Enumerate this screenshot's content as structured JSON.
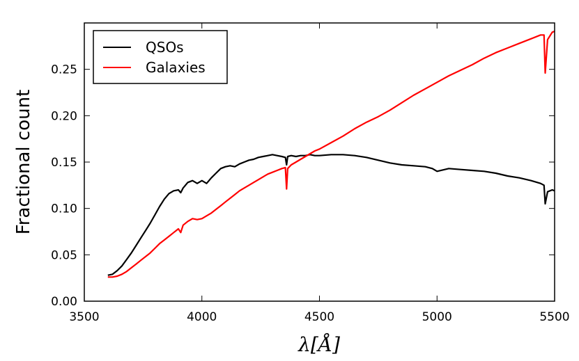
{
  "chart_data": {
    "type": "line",
    "title": "",
    "xlabel": "λ[Å]",
    "ylabel": "Fractional count",
    "xlim": [
      3500,
      5500
    ],
    "ylim": [
      0.0,
      0.3
    ],
    "xticks": [
      3500,
      4000,
      4500,
      5000,
      5500
    ],
    "xtick_labels": [
      "3500",
      "4000",
      "4500",
      "5000",
      "5500"
    ],
    "yticks": [
      0.0,
      0.05,
      0.1,
      0.15,
      0.2,
      0.25
    ],
    "ytick_labels": [
      "0.00",
      "0.05",
      "0.10",
      "0.15",
      "0.20",
      "0.25"
    ],
    "grid": false,
    "legend_position": "top-left",
    "series": [
      {
        "name": "QSOs",
        "color": "#000000",
        "x": [
          3600,
          3620,
          3640,
          3660,
          3680,
          3700,
          3720,
          3740,
          3760,
          3780,
          3800,
          3820,
          3840,
          3860,
          3880,
          3900,
          3910,
          3920,
          3940,
          3960,
          3980,
          4000,
          4020,
          4040,
          4060,
          4080,
          4100,
          4120,
          4140,
          4160,
          4180,
          4200,
          4220,
          4240,
          4260,
          4280,
          4300,
          4320,
          4340,
          4355,
          4360,
          4365,
          4380,
          4400,
          4420,
          4440,
          4460,
          4480,
          4500,
          4550,
          4600,
          4650,
          4700,
          4750,
          4800,
          4850,
          4900,
          4950,
          4980,
          5000,
          5050,
          5100,
          5150,
          5200,
          5250,
          5300,
          5350,
          5400,
          5440,
          5455,
          5460,
          5470,
          5490,
          5500
        ],
        "values": [
          0.028,
          0.029,
          0.033,
          0.038,
          0.045,
          0.052,
          0.06,
          0.068,
          0.076,
          0.084,
          0.093,
          0.102,
          0.11,
          0.116,
          0.119,
          0.12,
          0.117,
          0.122,
          0.128,
          0.13,
          0.127,
          0.13,
          0.127,
          0.133,
          0.138,
          0.143,
          0.145,
          0.146,
          0.145,
          0.148,
          0.15,
          0.152,
          0.153,
          0.155,
          0.156,
          0.157,
          0.158,
          0.157,
          0.156,
          0.155,
          0.147,
          0.156,
          0.157,
          0.156,
          0.157,
          0.157,
          0.158,
          0.157,
          0.157,
          0.158,
          0.158,
          0.157,
          0.155,
          0.152,
          0.149,
          0.147,
          0.146,
          0.145,
          0.143,
          0.14,
          0.143,
          0.142,
          0.141,
          0.14,
          0.138,
          0.135,
          0.133,
          0.13,
          0.127,
          0.125,
          0.105,
          0.118,
          0.12,
          0.119
        ]
      },
      {
        "name": "Galaxies",
        "color": "#ff0000",
        "x": [
          3600,
          3620,
          3640,
          3660,
          3680,
          3700,
          3720,
          3740,
          3760,
          3780,
          3800,
          3820,
          3840,
          3860,
          3880,
          3900,
          3910,
          3920,
          3940,
          3960,
          3980,
          4000,
          4020,
          4040,
          4060,
          4080,
          4100,
          4120,
          4140,
          4160,
          4180,
          4200,
          4220,
          4240,
          4260,
          4280,
          4300,
          4320,
          4340,
          4355,
          4360,
          4365,
          4380,
          4400,
          4420,
          4440,
          4460,
          4480,
          4500,
          4550,
          4600,
          4650,
          4700,
          4750,
          4800,
          4850,
          4900,
          4950,
          5000,
          5050,
          5100,
          5150,
          5200,
          5250,
          5300,
          5350,
          5400,
          5440,
          5455,
          5460,
          5470,
          5490,
          5500
        ],
        "values": [
          0.026,
          0.026,
          0.027,
          0.029,
          0.032,
          0.036,
          0.04,
          0.044,
          0.048,
          0.052,
          0.057,
          0.062,
          0.066,
          0.07,
          0.074,
          0.078,
          0.074,
          0.082,
          0.086,
          0.089,
          0.088,
          0.089,
          0.092,
          0.095,
          0.099,
          0.103,
          0.107,
          0.111,
          0.115,
          0.119,
          0.122,
          0.125,
          0.128,
          0.131,
          0.134,
          0.137,
          0.139,
          0.141,
          0.143,
          0.144,
          0.121,
          0.143,
          0.147,
          0.15,
          0.153,
          0.156,
          0.159,
          0.162,
          0.164,
          0.171,
          0.178,
          0.186,
          0.193,
          0.199,
          0.206,
          0.214,
          0.222,
          0.229,
          0.236,
          0.243,
          0.249,
          0.255,
          0.262,
          0.268,
          0.273,
          0.278,
          0.283,
          0.287,
          0.287,
          0.246,
          0.282,
          0.29,
          0.291
        ]
      }
    ]
  }
}
